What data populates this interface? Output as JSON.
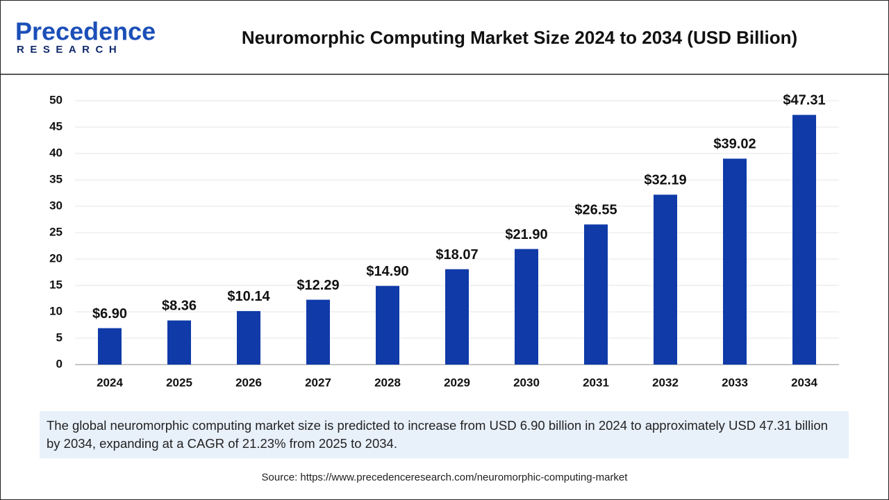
{
  "logo": {
    "name": "Precedence",
    "tagline": "RESEARCH"
  },
  "chart_data": {
    "type": "bar",
    "title": "Neuromorphic Computing Market Size 2024 to 2034 (USD Billion)",
    "categories": [
      "2024",
      "2025",
      "2026",
      "2027",
      "2028",
      "2029",
      "2030",
      "2031",
      "2032",
      "2033",
      "2034"
    ],
    "values": [
      6.9,
      8.36,
      10.14,
      12.29,
      14.9,
      18.07,
      21.9,
      26.55,
      32.19,
      39.02,
      47.31
    ],
    "value_labels": [
      "$6.90",
      "$8.36",
      "$10.14",
      "$12.29",
      "$14.90",
      "$18.07",
      "$21.90",
      "$26.55",
      "$32.19",
      "$39.02",
      "$47.31"
    ],
    "color": "#0f3aa8",
    "ylim": [
      0,
      50
    ],
    "yticks": [
      0,
      5,
      10,
      15,
      20,
      25,
      30,
      35,
      40,
      45,
      50
    ],
    "grid": true
  },
  "description": "The global neuromorphic computing market size is predicted to increase from USD 6.90 billion in 2024 to approximately USD 47.31 billion by 2034, expanding at a CAGR of 21.23% from 2025 to 2034.",
  "source": "Source: https://www.precedenceresearch.com/neuromorphic-computing-market"
}
